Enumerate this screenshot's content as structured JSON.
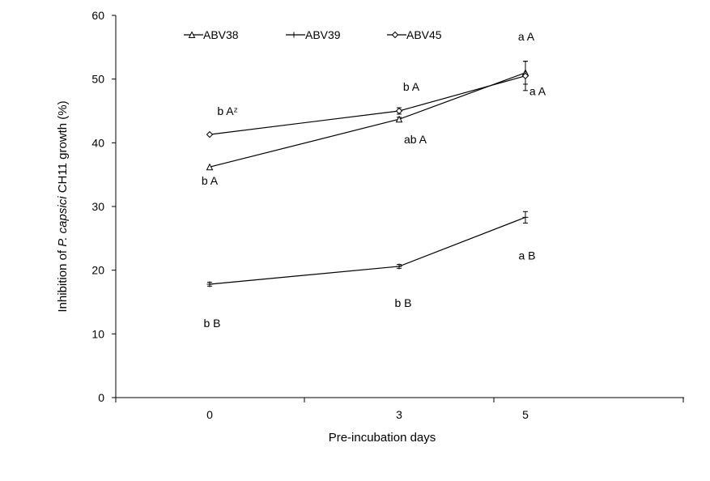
{
  "chart_data": {
    "type": "line",
    "xlabel": "Pre-incubation days",
    "ylabel_prefix": "Inhibition of ",
    "ylabel_italic": "P. capsici",
    "ylabel_suffix": " CH11 growth (%)",
    "ylim": [
      0,
      60
    ],
    "yticks": [
      "0",
      "10",
      "20",
      "30",
      "40",
      "50",
      "60"
    ],
    "x": [
      0,
      3,
      5
    ],
    "xtick_labels": [
      "0",
      "3",
      "5"
    ],
    "xlim": [
      -1.5,
      7.5
    ],
    "legend_position": "top-left",
    "grid": false,
    "series": [
      {
        "name": "ABV38",
        "marker": "triangle",
        "values": [
          36.2,
          43.7,
          51.0
        ],
        "errors": [
          0,
          0.3,
          1.8
        ],
        "labels": [
          "b A",
          "ab A",
          "a A"
        ]
      },
      {
        "name": "ABV39",
        "marker": "plus",
        "values": [
          17.8,
          20.6,
          28.3
        ],
        "errors": [
          0.3,
          0.3,
          0.9
        ],
        "labels": [
          "b B",
          "b B",
          "a B"
        ]
      },
      {
        "name": "ABV45",
        "marker": "diamond",
        "values": [
          41.3,
          45.0,
          50.5
        ],
        "errors": [
          0,
          0.5,
          2.3
        ],
        "labels": [
          "b Aᶻ",
          "b A",
          "a A"
        ]
      }
    ]
  }
}
